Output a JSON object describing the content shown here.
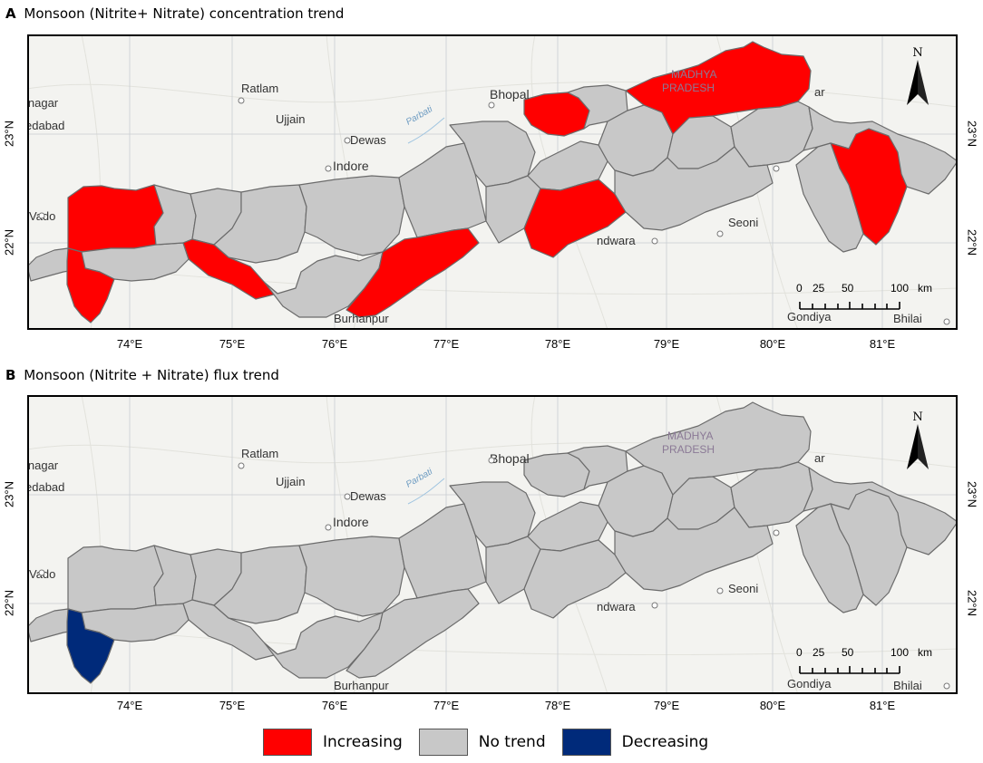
{
  "panels": [
    {
      "letter": "A",
      "title": "Monsoon (Nitrite+ Nitrate) concentration trend",
      "increasing_subbasins": 8,
      "decreasing_subbasins": 0
    },
    {
      "letter": "B",
      "title": "Monsoon (Nitrite + Nitrate) flux trend",
      "increasing_subbasins": 0,
      "decreasing_subbasins": 1
    }
  ],
  "x_ticks": [
    "74°E",
    "75°E",
    "76°E",
    "77°E",
    "78°E",
    "79°E",
    "80°E",
    "81°E"
  ],
  "y_ticks": [
    "23°N",
    "22°N"
  ],
  "place_labels": [
    "Ratlam",
    "Ujjain",
    "Dewas",
    "Indore",
    "Bhopal",
    "Seoni",
    "Burhanpur",
    "Gondiya",
    "Bhilai",
    "inagar",
    "edabad",
    "Vado",
    "Parbati",
    "MADHYA",
    "PRADESH",
    "ar",
    "ndwara"
  ],
  "north_label": "N",
  "scale_bar": {
    "ticks": [
      "0",
      "25",
      "50",
      "100"
    ],
    "unit": "km"
  },
  "legend": [
    {
      "label": "Increasing",
      "color": "#ff0000"
    },
    {
      "label": "No trend",
      "color": "#c8c8c8"
    },
    {
      "label": "Decreasing",
      "color": "#002a7a"
    }
  ],
  "colors": {
    "increasing": "#ff0000",
    "no_trend": "#c8c8c8",
    "decreasing": "#002a7a",
    "boundary": "#6b6b6b",
    "background": "#f3f3f0"
  }
}
